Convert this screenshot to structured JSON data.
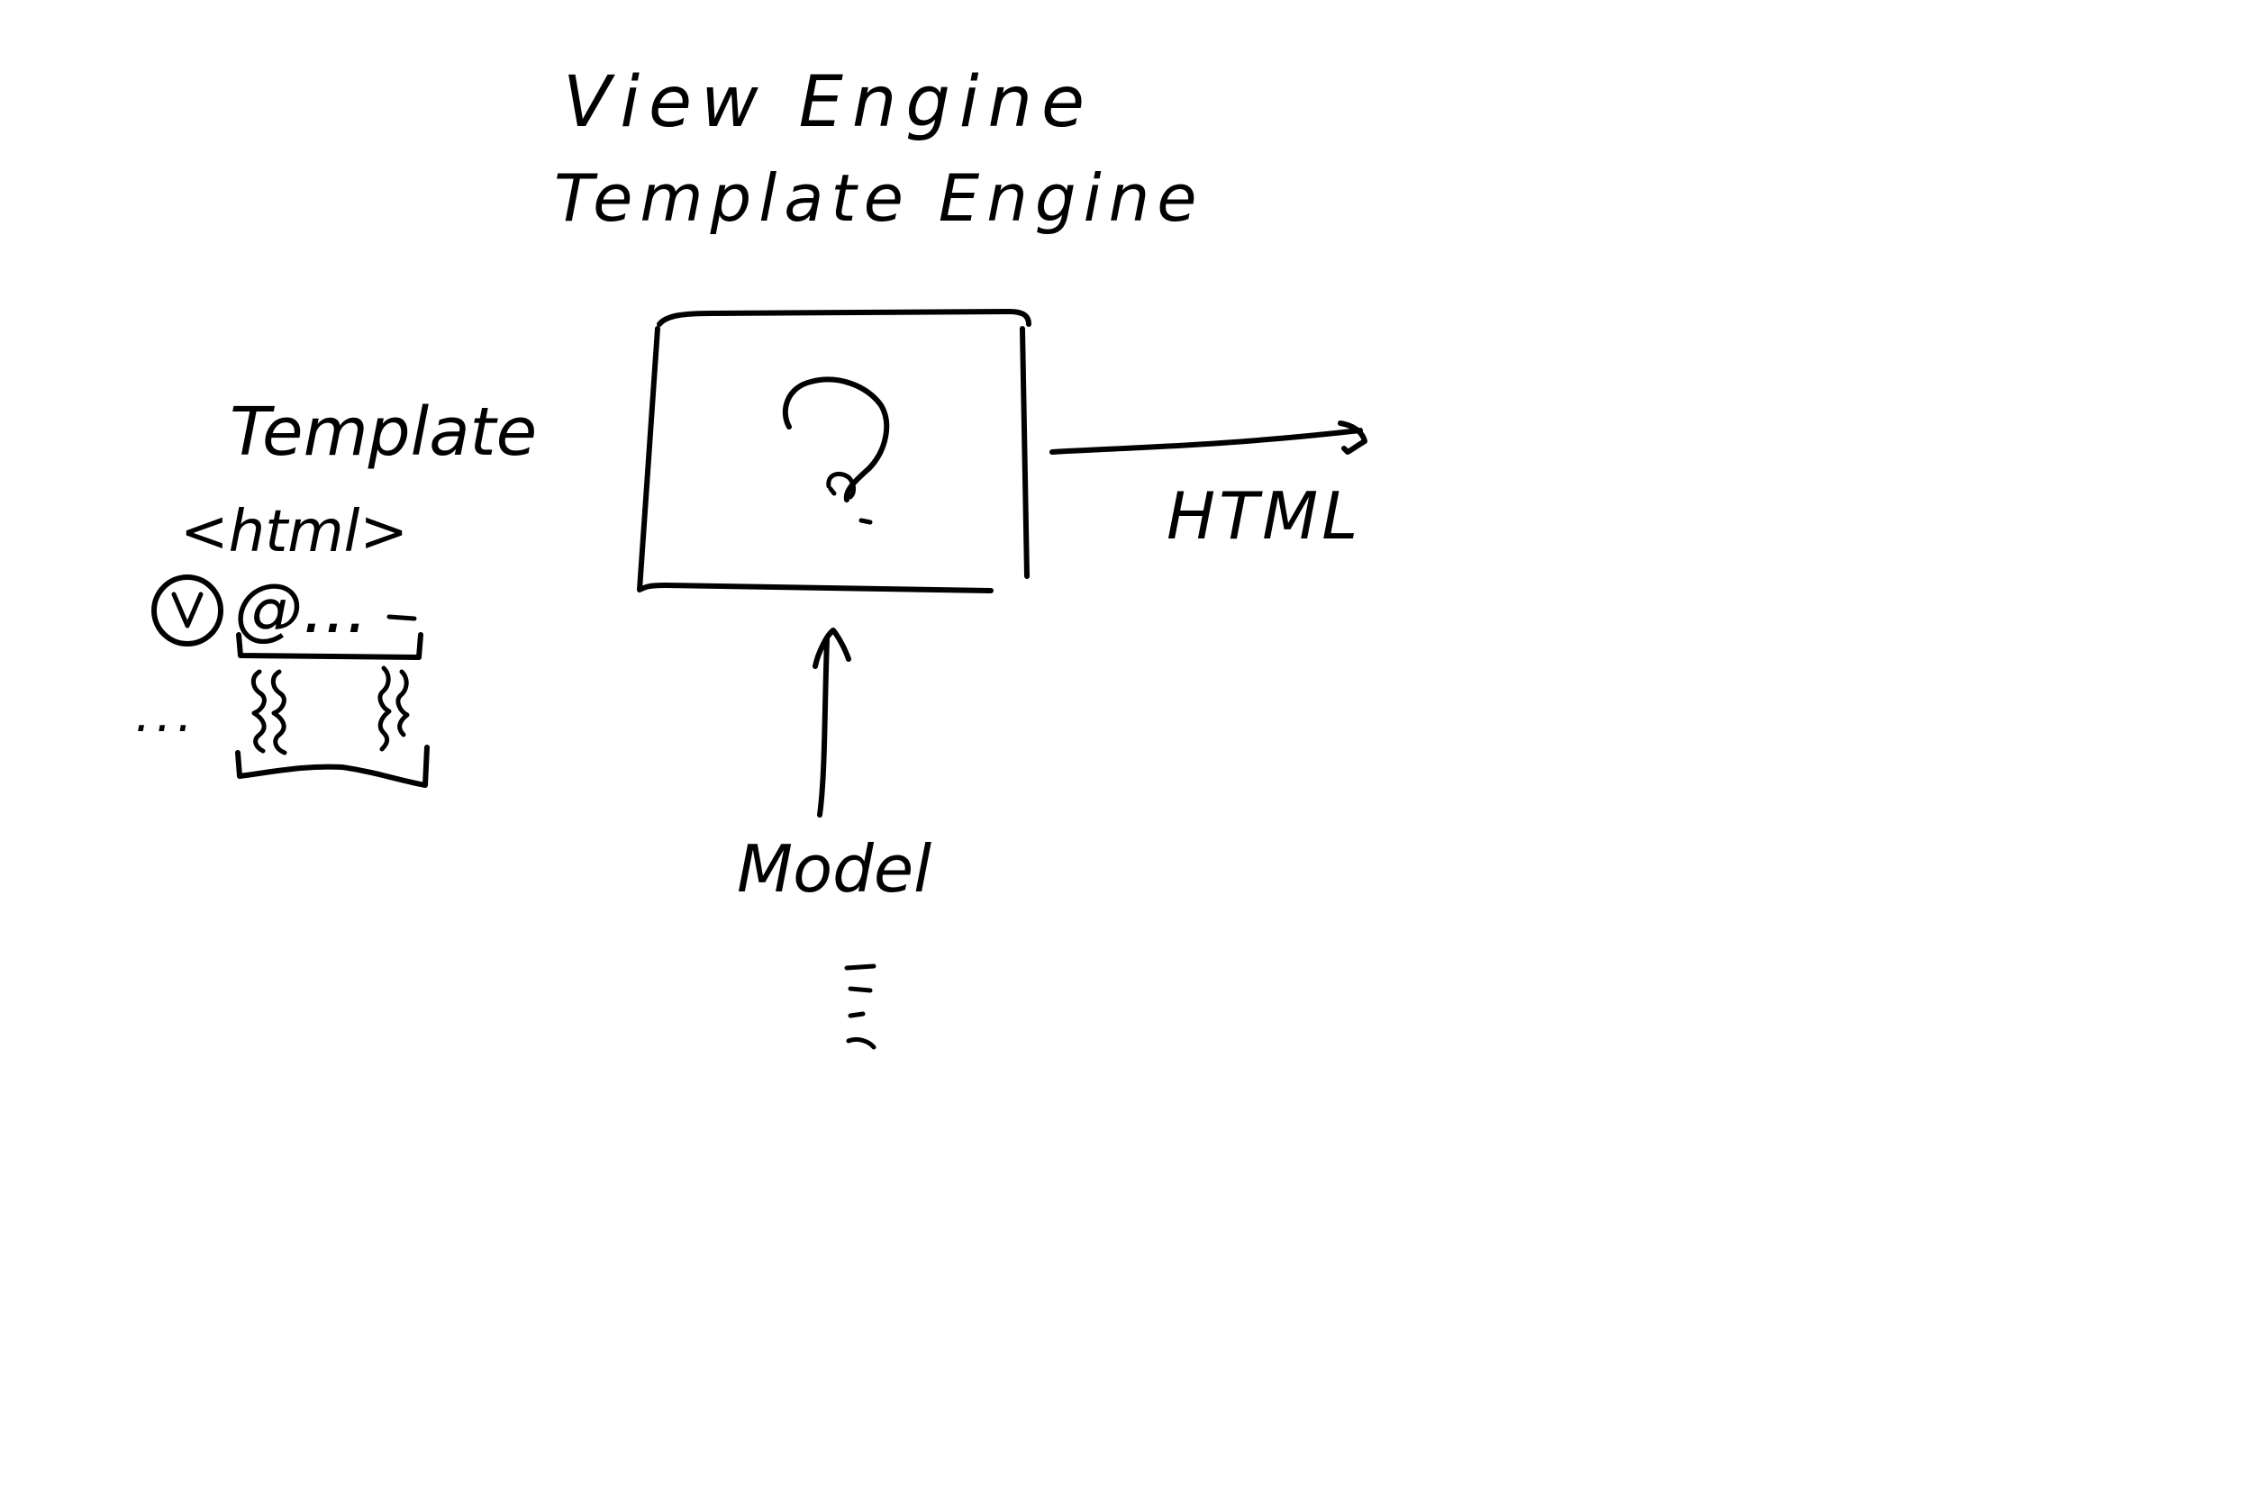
{
  "title": {
    "line1": "View Engine",
    "line2": "Template Engine"
  },
  "template": {
    "label": "Template",
    "tag": "<html>",
    "at_line": "@...",
    "ellipsis": "..."
  },
  "engine_box": {
    "symbol": "?"
  },
  "output": {
    "label": "HTML"
  },
  "model": {
    "label": "Model"
  },
  "colors": {
    "ink": "#000000",
    "background": "#ffffff"
  }
}
